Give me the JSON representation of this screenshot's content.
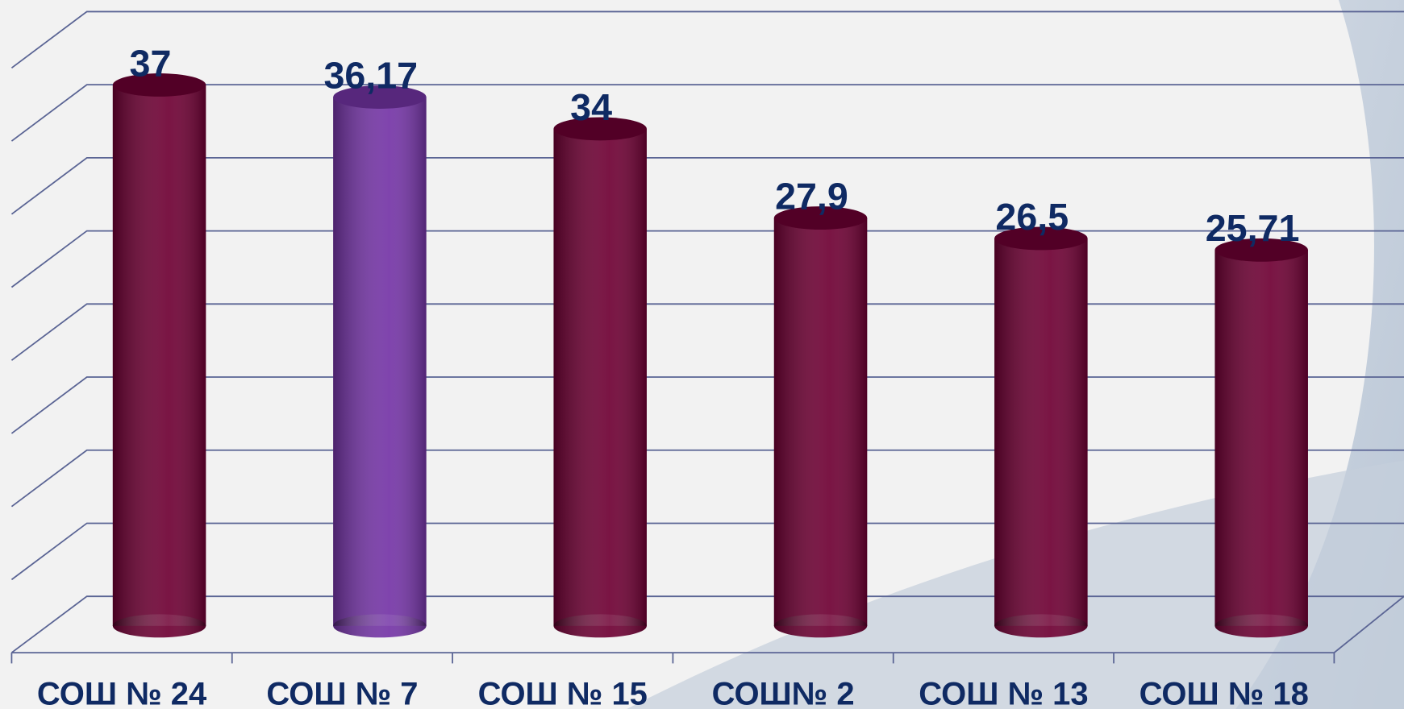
{
  "chart_data": {
    "type": "bar3d",
    "categories": [
      "СОШ № 24",
      "СОШ № 7",
      "СОШ № 15",
      "СОШ№ 2",
      "СОШ № 13",
      "СОШ № 18"
    ],
    "values": [
      37,
      36.17,
      34,
      27.9,
      26.5,
      25.71
    ],
    "value_labels": [
      "37",
      "36,17",
      "34",
      "27,9",
      "26,5",
      "25,71"
    ],
    "colors": [
      "#6e0033",
      "#7434a6",
      "#6e0033",
      "#6e0033",
      "#6e0033",
      "#6e0033"
    ],
    "ylim": [
      0,
      40
    ],
    "yticks": [
      0,
      5,
      10,
      15,
      20,
      25,
      30,
      35,
      40
    ],
    "grid": true
  }
}
